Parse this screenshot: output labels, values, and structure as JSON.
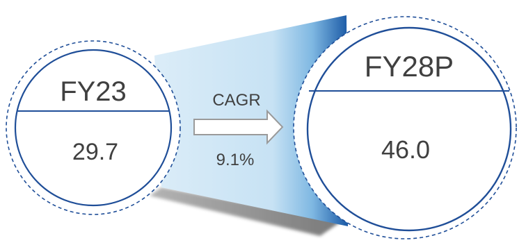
{
  "left_circle": {
    "label": "FY23",
    "value": "29.7"
  },
  "right_circle": {
    "label": "FY28P",
    "value": "46.0"
  },
  "growth": {
    "title": "CAGR",
    "rate": "9.1%"
  },
  "colors": {
    "circle_stroke": "#1f4e98",
    "funnel_light": "#d5eaf7",
    "funnel_mid": "#8fc4e6",
    "funnel_dark": "#1b5aa6",
    "shadow": "#6b6b6b",
    "text": "#404040",
    "arrow_stroke": "#9a9a9a"
  }
}
